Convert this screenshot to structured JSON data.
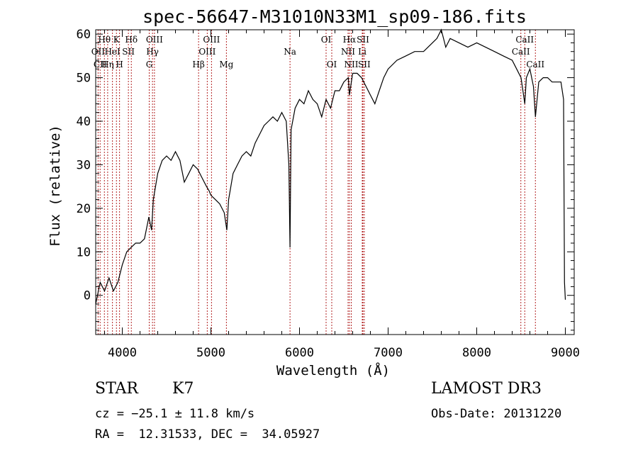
{
  "chart_data": {
    "type": "line",
    "title": "spec-56647-M31010N33M1_sp09-186.fits",
    "xlabel": "Wavelength (Å)",
    "ylabel": "Flux (relative)",
    "xlim": [
      3700,
      9100
    ],
    "ylim": [
      -9,
      61
    ],
    "xticks": [
      4000,
      5000,
      6000,
      7000,
      8000,
      9000
    ],
    "yticks": [
      0,
      10,
      20,
      30,
      40,
      50,
      60
    ],
    "grid": false,
    "series": [
      {
        "name": "flux",
        "x": [
          3700,
          3750,
          3800,
          3850,
          3900,
          3950,
          4000,
          4050,
          4100,
          4150,
          4200,
          4250,
          4300,
          4330,
          4350,
          4400,
          4450,
          4500,
          4550,
          4600,
          4650,
          4700,
          4750,
          4800,
          4850,
          4900,
          4950,
          4980,
          5000,
          5050,
          5100,
          5150,
          5180,
          5200,
          5250,
          5300,
          5350,
          5400,
          5450,
          5500,
          5550,
          5600,
          5650,
          5700,
          5750,
          5800,
          5850,
          5880,
          5893,
          5905,
          5950,
          6000,
          6050,
          6100,
          6150,
          6200,
          6250,
          6300,
          6350,
          6400,
          6450,
          6500,
          6550,
          6563,
          6600,
          6650,
          6700,
          6750,
          6800,
          6850,
          6900,
          6950,
          7000,
          7100,
          7200,
          7300,
          7400,
          7500,
          7550,
          7600,
          7650,
          7700,
          7800,
          7900,
          8000,
          8100,
          8200,
          8300,
          8400,
          8450,
          8500,
          8542,
          8560,
          8600,
          8640,
          8662,
          8700,
          8750,
          8800,
          8850,
          8900,
          8950,
          8980,
          8990,
          9000
        ],
        "y": [
          -2,
          3,
          1,
          4,
          1,
          3,
          7,
          10,
          11,
          12,
          12,
          13,
          18,
          15,
          22,
          28,
          31,
          32,
          31,
          33,
          31,
          26,
          28,
          30,
          29,
          27,
          25,
          24,
          23,
          22,
          21,
          19,
          15,
          22,
          28,
          30,
          32,
          33,
          32,
          35,
          37,
          39,
          40,
          41,
          40,
          42,
          40,
          30,
          11,
          38,
          43,
          45,
          44,
          47,
          45,
          44,
          41,
          45,
          43,
          47,
          47,
          49,
          50,
          46,
          51,
          51,
          50,
          48,
          46,
          44,
          47,
          50,
          52,
          54,
          55,
          56,
          56,
          58,
          59,
          61,
          57,
          59,
          58,
          57,
          58,
          57,
          56,
          55,
          54,
          52,
          50,
          44,
          50,
          52,
          48,
          41,
          49,
          50,
          50,
          49,
          49,
          49,
          45,
          3,
          -1
        ]
      }
    ],
    "lines": [
      {
        "name": "Hθ",
        "x": 3798,
        "row": 0
      },
      {
        "name": "OII",
        "x": 3727,
        "row": 1
      },
      {
        "name": "CII",
        "x": 3750,
        "row": 2
      },
      {
        "name": "K",
        "x": 3934,
        "row": 0
      },
      {
        "name": "HeI",
        "x": 3889,
        "row": 1
      },
      {
        "name": "Hη",
        "x": 3835,
        "row": 2
      },
      {
        "name": "SII",
        "x": 4069,
        "row": 1
      },
      {
        "name": "H",
        "x": 3969,
        "row": 2
      },
      {
        "name": "Hδ",
        "x": 4102,
        "row": 0
      },
      {
        "name": "OIII",
        "x": 4363,
        "row": 0
      },
      {
        "name": "Hγ",
        "x": 4341,
        "row": 1
      },
      {
        "name": "G",
        "x": 4304,
        "row": 2
      },
      {
        "name": "Hβ",
        "x": 4861,
        "row": 2
      },
      {
        "name": "OIII",
        "x": 5007,
        "row": 0
      },
      {
        "name": "OIII",
        "x": 4959,
        "row": 1
      },
      {
        "name": "Mg",
        "x": 5175,
        "row": 2
      },
      {
        "name": "Na",
        "x": 5893,
        "row": 1
      },
      {
        "name": "OI",
        "x": 6300,
        "row": 0
      },
      {
        "name": "OI",
        "x": 6364,
        "row": 2
      },
      {
        "name": "Hα",
        "x": 6563,
        "row": 0
      },
      {
        "name": "NII",
        "x": 6548,
        "row": 1
      },
      {
        "name": "NII",
        "x": 6584,
        "row": 2
      },
      {
        "name": "SII",
        "x": 6716,
        "row": 0
      },
      {
        "name": "Li",
        "x": 6708,
        "row": 1
      },
      {
        "name": "SII",
        "x": 6731,
        "row": 2
      },
      {
        "name": "CaII",
        "x": 8542,
        "row": 0
      },
      {
        "name": "CaII",
        "x": 8498,
        "row": 1
      },
      {
        "name": "CaII",
        "x": 8662,
        "row": 2
      }
    ]
  },
  "info": {
    "object_class": "STAR",
    "subclass": "K7",
    "survey": "LAMOST DR3",
    "cz_line": "cz = −25.1 ± 11.8 km/s",
    "obs_date": "Obs-Date: 20131220",
    "radec": "RA =  12.31533, DEC =  34.05927"
  },
  "colors": {
    "spectrum": "#000000",
    "line_marker": "#b22222",
    "axis": "#000000"
  }
}
